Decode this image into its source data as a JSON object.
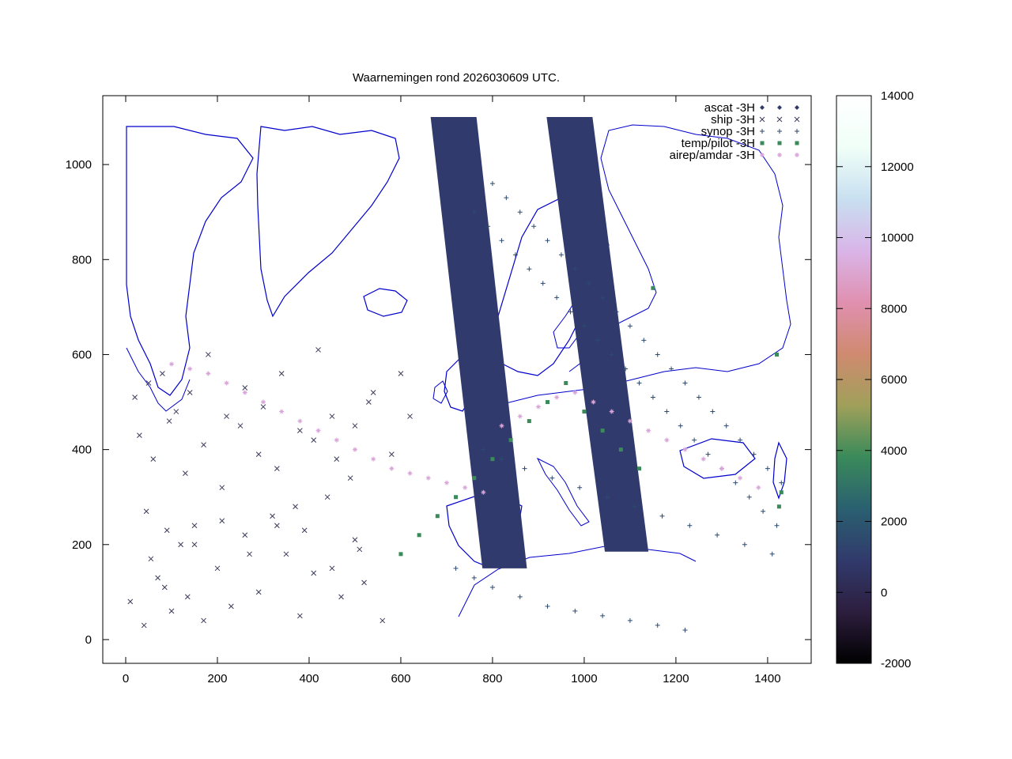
{
  "chart_data": {
    "type": "scatter",
    "title": "Waarnemingen rond 2026030609 UTC.",
    "xlabel": "",
    "ylabel": "",
    "xlim": [
      -50,
      1495
    ],
    "ylim": [
      -50,
      1145
    ],
    "xticks": [
      0,
      200,
      400,
      600,
      800,
      1000,
      1200,
      1400
    ],
    "yticks": [
      0,
      200,
      400,
      600,
      800,
      1000
    ],
    "grid": false,
    "legend_position": "top-right",
    "series": [
      {
        "name": "ascat -3H",
        "marker": "diamond",
        "color": "#313a6c",
        "swaths": [
          {
            "x_top": [
              665,
              765
            ],
            "x_bottom": [
              778,
              875
            ],
            "y_top": 1100,
            "y_bottom": 150
          },
          {
            "x_top": [
              918,
              1018
            ],
            "x_bottom": [
              1045,
              1140
            ],
            "y_top": 1100,
            "y_bottom": 185
          }
        ]
      },
      {
        "name": "ship -3H",
        "marker": "x",
        "color": "#3a3a5a",
        "x": [
          10,
          40,
          55,
          70,
          85,
          100,
          120,
          135,
          150,
          170,
          200,
          230,
          260,
          290,
          320,
          350,
          380,
          410,
          440,
          470,
          500,
          520,
          560,
          30,
          60,
          95,
          130,
          170,
          210,
          250,
          290,
          330,
          370,
          410,
          450,
          490,
          530,
          20,
          50,
          80,
          110,
          140,
          180,
          220,
          260,
          300,
          340,
          380,
          420,
          460,
          500,
          540,
          580,
          600,
          620,
          45,
          90,
          150,
          210,
          270,
          330,
          390,
          450,
          510
        ],
        "y": [
          80,
          30,
          170,
          130,
          110,
          60,
          200,
          90,
          240,
          40,
          150,
          70,
          220,
          100,
          260,
          180,
          50,
          140,
          300,
          90,
          210,
          120,
          40,
          430,
          380,
          460,
          350,
          410,
          320,
          450,
          390,
          360,
          280,
          420,
          470,
          340,
          500,
          510,
          540,
          560,
          480,
          520,
          600,
          470,
          530,
          490,
          560,
          440,
          610,
          380,
          450,
          520,
          390,
          560,
          470,
          270,
          230,
          200,
          250,
          180,
          240,
          230,
          150,
          190
        ]
      },
      {
        "name": "synop -3H",
        "marker": "plus",
        "color": "#2c4a6e",
        "x": [
          760,
          790,
          820,
          850,
          880,
          910,
          940,
          970,
          1000,
          1030,
          1060,
          1090,
          1120,
          1150,
          1180,
          1210,
          1240,
          1270,
          1300,
          1330,
          1360,
          1390,
          1420,
          800,
          830,
          860,
          890,
          920,
          950,
          980,
          1010,
          1040,
          1070,
          1100,
          1130,
          1160,
          1190,
          1220,
          1250,
          1280,
          1310,
          1340,
          1370,
          1400,
          1430,
          780,
          820,
          870,
          930,
          990,
          1050,
          1110,
          1170,
          1230,
          1290,
          1350,
          1410,
          720,
          760,
          800,
          860,
          920,
          980,
          1040,
          1100,
          1160,
          1220
        ],
        "y": [
          900,
          870,
          840,
          810,
          780,
          750,
          720,
          690,
          660,
          630,
          600,
          570,
          540,
          510,
          480,
          450,
          420,
          390,
          360,
          330,
          300,
          270,
          240,
          960,
          930,
          900,
          870,
          840,
          810,
          780,
          750,
          720,
          690,
          660,
          630,
          600,
          570,
          540,
          510,
          480,
          450,
          420,
          390,
          360,
          330,
          400,
          380,
          360,
          340,
          320,
          300,
          280,
          260,
          240,
          220,
          200,
          180,
          150,
          130,
          110,
          90,
          70,
          60,
          50,
          40,
          30,
          20
        ]
      },
      {
        "name": "temp/pilot -3H",
        "marker": "square",
        "color": "#3a8a5a",
        "x": [
          600,
          640,
          680,
          720,
          760,
          800,
          840,
          880,
          920,
          960,
          1000,
          1040,
          1080,
          1120,
          1150,
          1420,
          1430,
          1425
        ],
        "y": [
          180,
          220,
          260,
          300,
          340,
          380,
          420,
          460,
          500,
          540,
          480,
          440,
          400,
          360,
          740,
          600,
          310,
          280
        ]
      },
      {
        "name": "airep/amdar -3H",
        "marker": "star",
        "color": "#d9a5d9",
        "x": [
          100,
          140,
          180,
          220,
          260,
          300,
          340,
          380,
          420,
          460,
          500,
          540,
          580,
          620,
          660,
          700,
          740,
          780,
          820,
          860,
          900,
          940,
          980,
          1020,
          1060,
          1100,
          1140,
          1180,
          1220,
          1260,
          1300,
          1340,
          1380
        ],
        "y": [
          580,
          570,
          560,
          540,
          520,
          500,
          480,
          460,
          440,
          420,
          400,
          380,
          360,
          350,
          340,
          330,
          320,
          310,
          450,
          470,
          490,
          510,
          520,
          500,
          480,
          460,
          440,
          420,
          400,
          380,
          360,
          340,
          320
        ]
      }
    ]
  },
  "colorbar": {
    "min": -2000,
    "max": 14000,
    "ticks": [
      -2000,
      0,
      2000,
      4000,
      6000,
      8000,
      10000,
      12000,
      14000
    ],
    "stops": [
      "#000000",
      "#2d1e3e",
      "#313a6c",
      "#2a6070",
      "#3a8a5a",
      "#a0a05a",
      "#d08a70",
      "#e090b0",
      "#d9b5e8",
      "#c8e0f0",
      "#f0fff8",
      "#ffffff"
    ]
  }
}
